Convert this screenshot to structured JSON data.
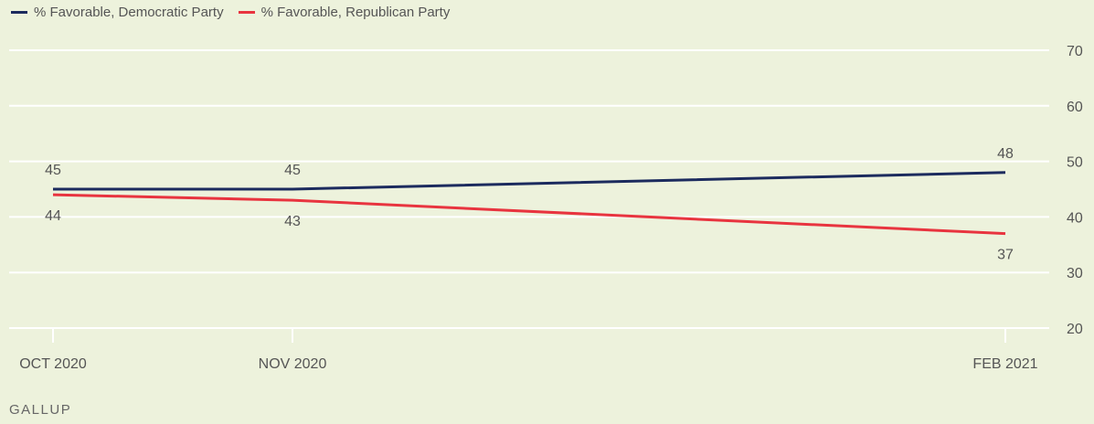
{
  "colors": {
    "background": "#edf2dc",
    "grid": "#ffffff",
    "text": "#555555"
  },
  "source": "GALLUP",
  "chart_data": {
    "type": "line",
    "title": "",
    "xlabel": "",
    "ylabel": "",
    "categories": [
      "OCT 2020",
      "NOV 2020",
      "FEB 2021"
    ],
    "ylim": [
      20,
      70
    ],
    "yticks": [
      20,
      30,
      40,
      50,
      60,
      70
    ],
    "grid": true,
    "legend_position": "top-left",
    "series": [
      {
        "name": "% Favorable, Democratic Party",
        "values": [
          45,
          45,
          48
        ],
        "color": "#1c2b5e"
      },
      {
        "name": "% Favorable, Republican Party",
        "values": [
          44,
          43,
          37
        ],
        "color": "#e8343f"
      }
    ]
  }
}
